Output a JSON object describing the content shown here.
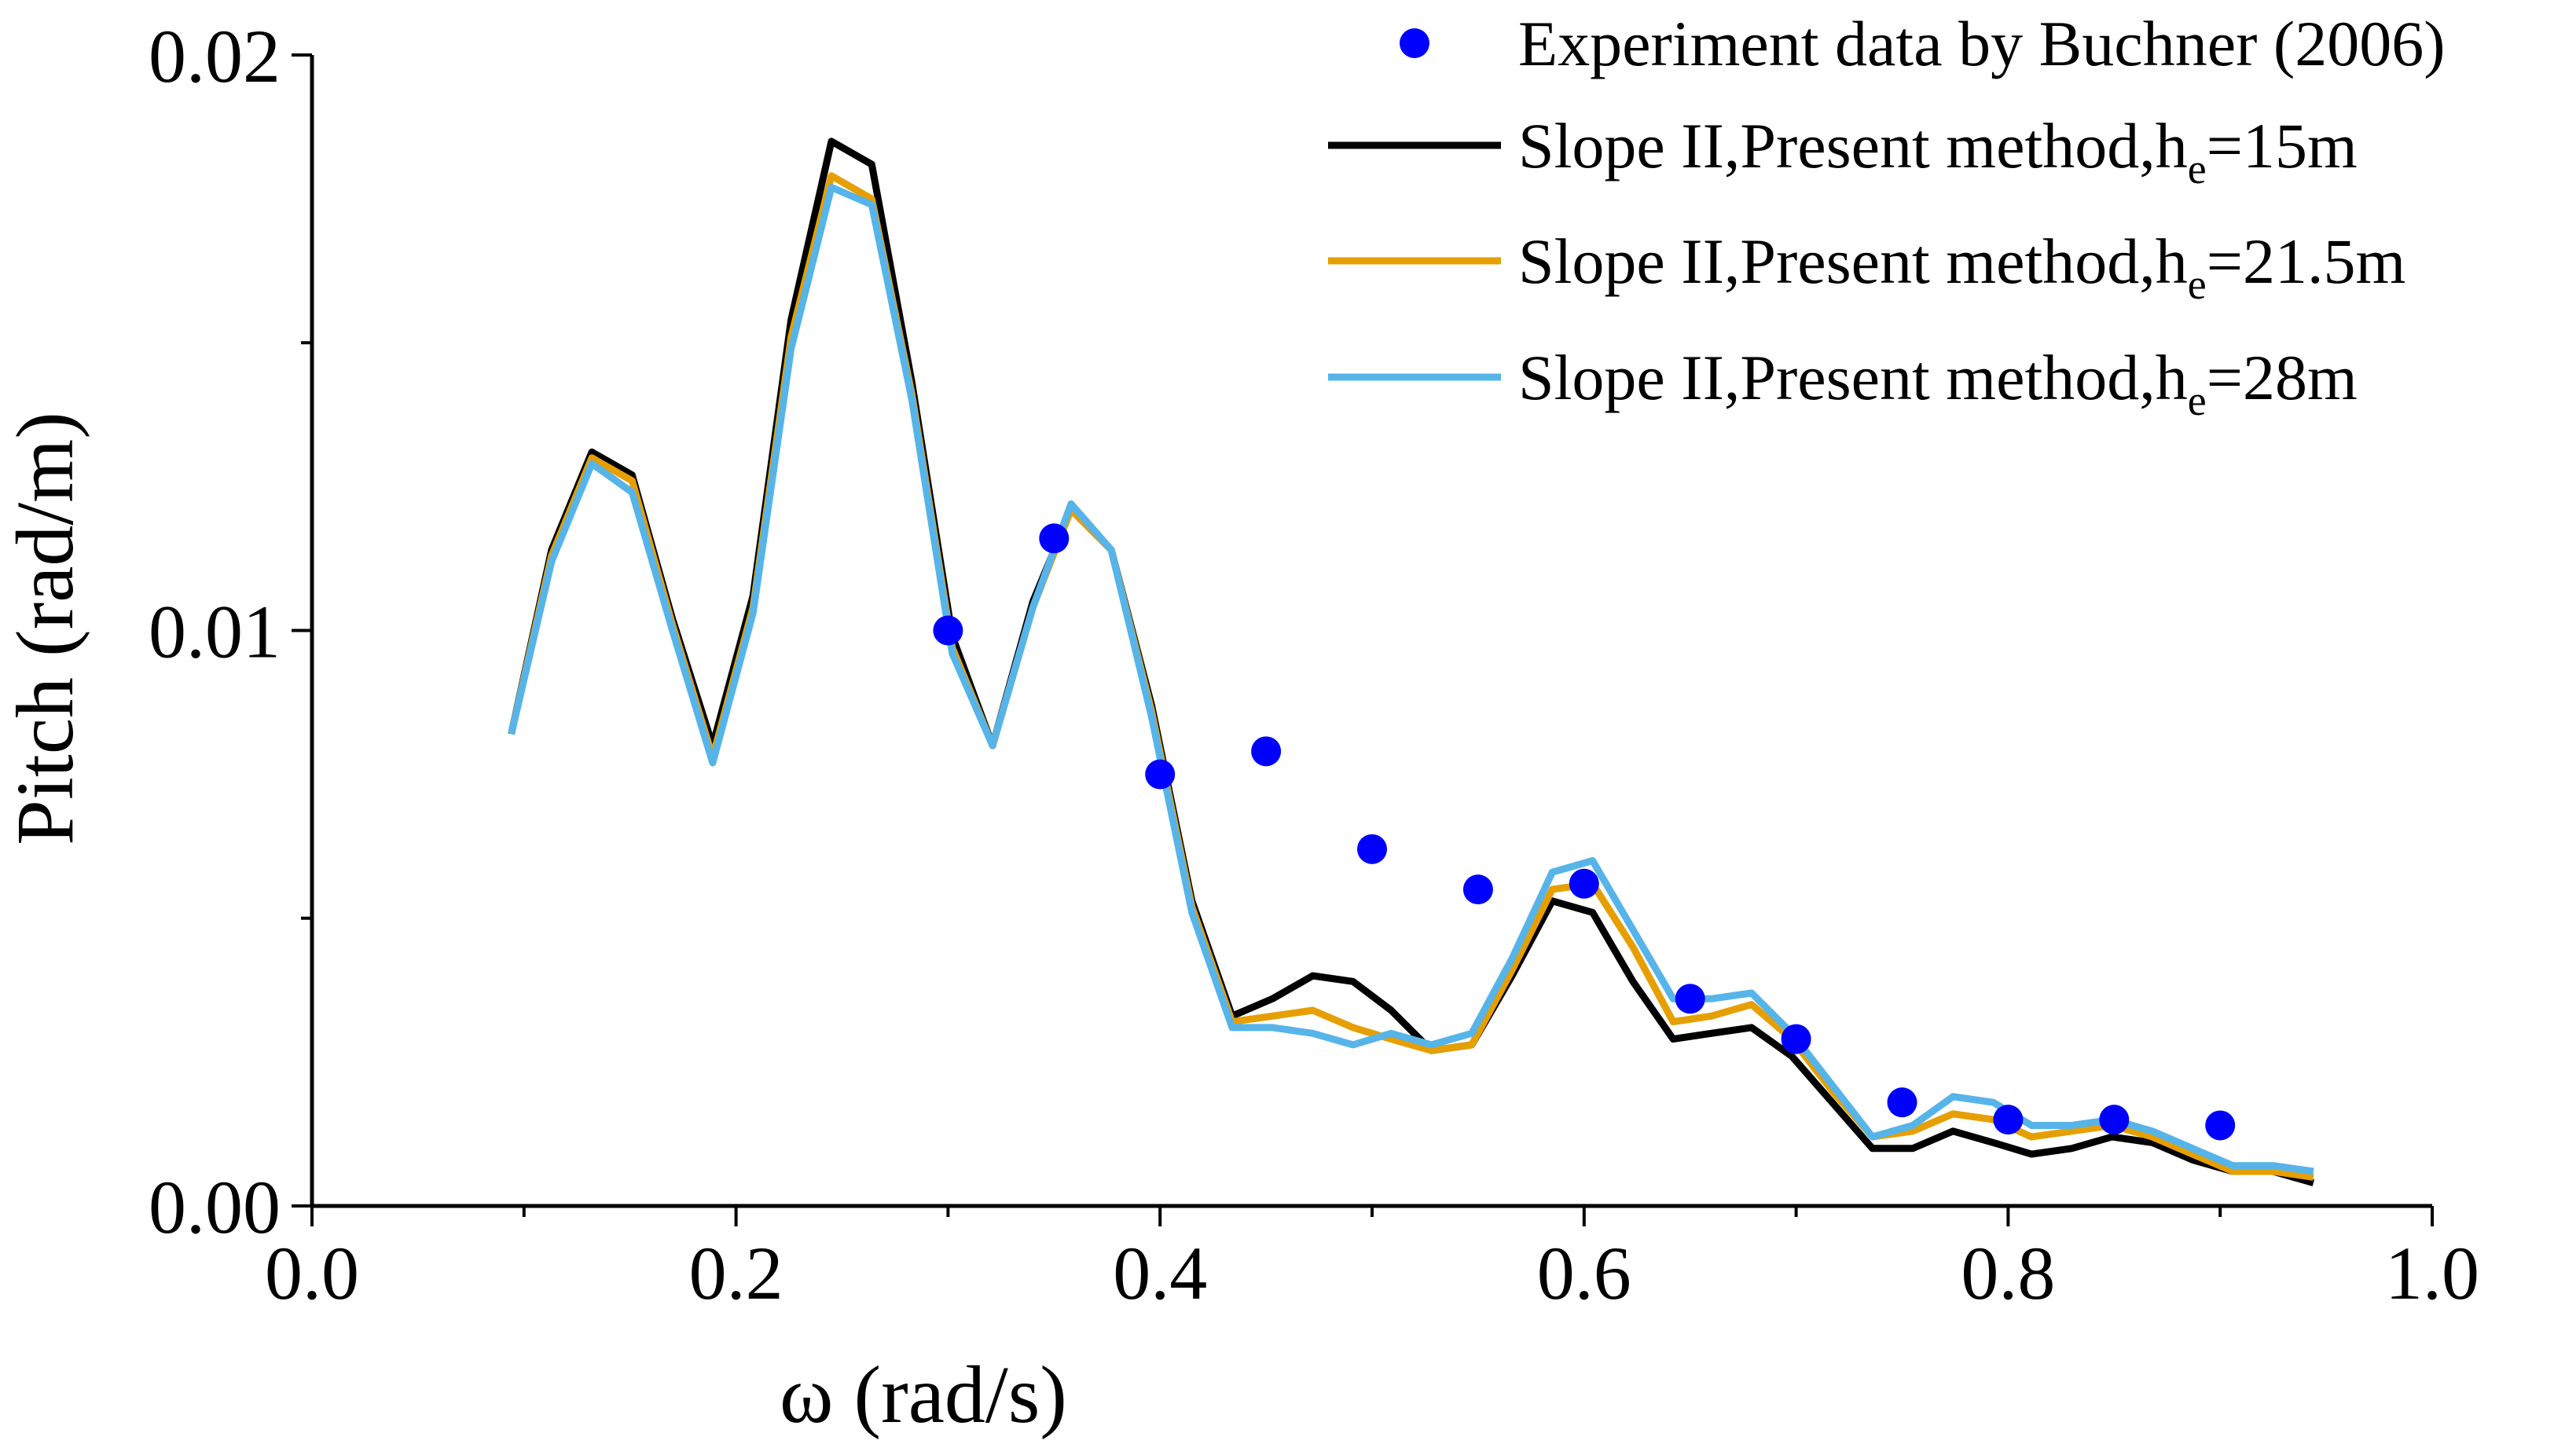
{
  "chart_data": {
    "type": "line",
    "xlabel": "ω (rad/s)",
    "ylabel": "Pitch (rad/m)",
    "xlim": [
      0.0,
      1.0
    ],
    "ylim": [
      0.0,
      0.02
    ],
    "x_ticks": [
      "0.0",
      "0.2",
      "0.4",
      "0.6",
      "0.8",
      "1.0"
    ],
    "y_ticks": [
      "0.00",
      "0.01",
      "0.02"
    ],
    "legend_position": "top-right",
    "grid": false,
    "series": [
      {
        "name": "Experiment data by Buchner (2006)",
        "kind": "scatter",
        "color": "#0000ff",
        "x": [
          0.3,
          0.35,
          0.4,
          0.45,
          0.5,
          0.55,
          0.6,
          0.65,
          0.7,
          0.75,
          0.8,
          0.85,
          0.9
        ],
        "y": [
          0.01,
          0.0116,
          0.0075,
          0.0079,
          0.0062,
          0.0055,
          0.0056,
          0.0036,
          0.0029,
          0.0018,
          0.0015,
          0.0015,
          0.0014
        ]
      },
      {
        "name": "Slope II,Present method,h",
        "subscript": "e",
        "suffix": "=15m",
        "kind": "line",
        "color": "#000000",
        "x": [
          0.094,
          0.113,
          0.132,
          0.151,
          0.17,
          0.189,
          0.208,
          0.226,
          0.245,
          0.264,
          0.283,
          0.302,
          0.321,
          0.34,
          0.358,
          0.377,
          0.396,
          0.415,
          0.434,
          0.453,
          0.472,
          0.491,
          0.509,
          0.528,
          0.547,
          0.566,
          0.585,
          0.604,
          0.623,
          0.642,
          0.66,
          0.679,
          0.698,
          0.717,
          0.736,
          0.755,
          0.774,
          0.793,
          0.811,
          0.83,
          0.849,
          0.868,
          0.887,
          0.906,
          0.925,
          0.944
        ],
        "y": [
          0.0082,
          0.0114,
          0.0131,
          0.0127,
          0.0102,
          0.008,
          0.0106,
          0.0154,
          0.0185,
          0.0181,
          0.0143,
          0.0099,
          0.008,
          0.0105,
          0.0121,
          0.0114,
          0.0087,
          0.0053,
          0.0033,
          0.0036,
          0.004,
          0.0039,
          0.0034,
          0.0027,
          0.0028,
          0.004,
          0.0053,
          0.0051,
          0.0039,
          0.0029,
          0.003,
          0.0031,
          0.0026,
          0.0018,
          0.001,
          0.001,
          0.0013,
          0.0011,
          0.0009,
          0.001,
          0.0012,
          0.0011,
          0.0008,
          0.0006,
          0.0006,
          0.0004
        ]
      },
      {
        "name": "Slope II,Present method,h",
        "subscript": "e",
        "suffix": "=21.5m",
        "kind": "line",
        "color": "#e69f00",
        "x": [
          0.094,
          0.113,
          0.132,
          0.151,
          0.17,
          0.189,
          0.208,
          0.226,
          0.245,
          0.264,
          0.283,
          0.302,
          0.321,
          0.34,
          0.358,
          0.377,
          0.396,
          0.415,
          0.434,
          0.453,
          0.472,
          0.491,
          0.509,
          0.528,
          0.547,
          0.566,
          0.585,
          0.604,
          0.623,
          0.642,
          0.66,
          0.679,
          0.698,
          0.717,
          0.736,
          0.755,
          0.774,
          0.793,
          0.811,
          0.83,
          0.849,
          0.868,
          0.887,
          0.906,
          0.925,
          0.944
        ],
        "y": [
          0.0082,
          0.0113,
          0.013,
          0.0126,
          0.0101,
          0.0078,
          0.0104,
          0.0151,
          0.0179,
          0.0175,
          0.0141,
          0.0097,
          0.008,
          0.0104,
          0.0121,
          0.0114,
          0.0086,
          0.0052,
          0.0032,
          0.0033,
          0.0034,
          0.0031,
          0.0029,
          0.0027,
          0.0028,
          0.0041,
          0.0055,
          0.0056,
          0.0045,
          0.0032,
          0.0033,
          0.0035,
          0.0029,
          0.002,
          0.0012,
          0.0013,
          0.0016,
          0.0015,
          0.0012,
          0.0013,
          0.0014,
          0.0012,
          0.0009,
          0.0006,
          0.0006,
          0.0005
        ]
      },
      {
        "name": "Slope II,Present method,h",
        "subscript": "e",
        "suffix": "=28m",
        "kind": "line",
        "color": "#56b4e9",
        "x": [
          0.094,
          0.113,
          0.132,
          0.151,
          0.17,
          0.189,
          0.208,
          0.226,
          0.245,
          0.264,
          0.283,
          0.302,
          0.321,
          0.34,
          0.358,
          0.377,
          0.396,
          0.415,
          0.434,
          0.453,
          0.472,
          0.491,
          0.509,
          0.528,
          0.547,
          0.566,
          0.585,
          0.604,
          0.623,
          0.642,
          0.66,
          0.679,
          0.698,
          0.717,
          0.736,
          0.755,
          0.774,
          0.793,
          0.811,
          0.83,
          0.849,
          0.868,
          0.887,
          0.906,
          0.925,
          0.944
        ],
        "y": [
          0.0082,
          0.0112,
          0.0129,
          0.0124,
          0.01,
          0.0077,
          0.0103,
          0.0149,
          0.0177,
          0.0174,
          0.014,
          0.0096,
          0.008,
          0.0104,
          0.0122,
          0.0114,
          0.0085,
          0.0051,
          0.0031,
          0.0031,
          0.003,
          0.0028,
          0.003,
          0.0028,
          0.003,
          0.0043,
          0.0058,
          0.006,
          0.0048,
          0.0036,
          0.0036,
          0.0037,
          0.003,
          0.0021,
          0.0012,
          0.0014,
          0.0019,
          0.0018,
          0.0014,
          0.0014,
          0.0015,
          0.0013,
          0.001,
          0.0007,
          0.0007,
          0.0006
        ]
      }
    ]
  }
}
